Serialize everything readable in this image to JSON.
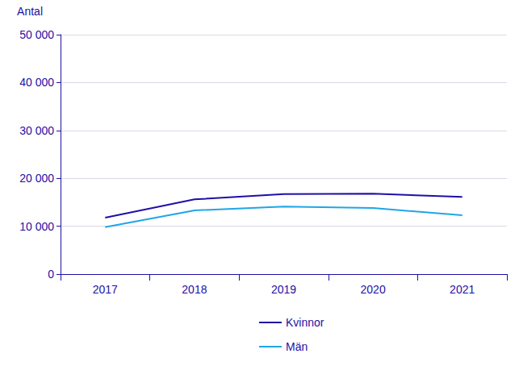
{
  "chart_data": {
    "type": "line",
    "ylabel": "Antal",
    "categories": [
      "2017",
      "2018",
      "2019",
      "2020",
      "2021"
    ],
    "series": [
      {
        "name": "Kvinnor",
        "color": "#1e0fa6",
        "values": [
          11800,
          15600,
          16700,
          16800,
          16100
        ]
      },
      {
        "name": "Män",
        "color": "#1fa6e6",
        "values": [
          9800,
          13300,
          14100,
          13800,
          12300
        ]
      }
    ],
    "ylim": [
      0,
      50000
    ],
    "yticks": [
      0,
      {
        "value": 10000,
        "label": "10 000"
      },
      {
        "value": 20000,
        "label": "20 000"
      },
      {
        "value": 30000,
        "label": "30 000"
      },
      {
        "value": 40000,
        "label": "40 000"
      },
      {
        "value": 50000,
        "label": "50 000"
      }
    ],
    "grid": true,
    "legend": "bottom"
  }
}
